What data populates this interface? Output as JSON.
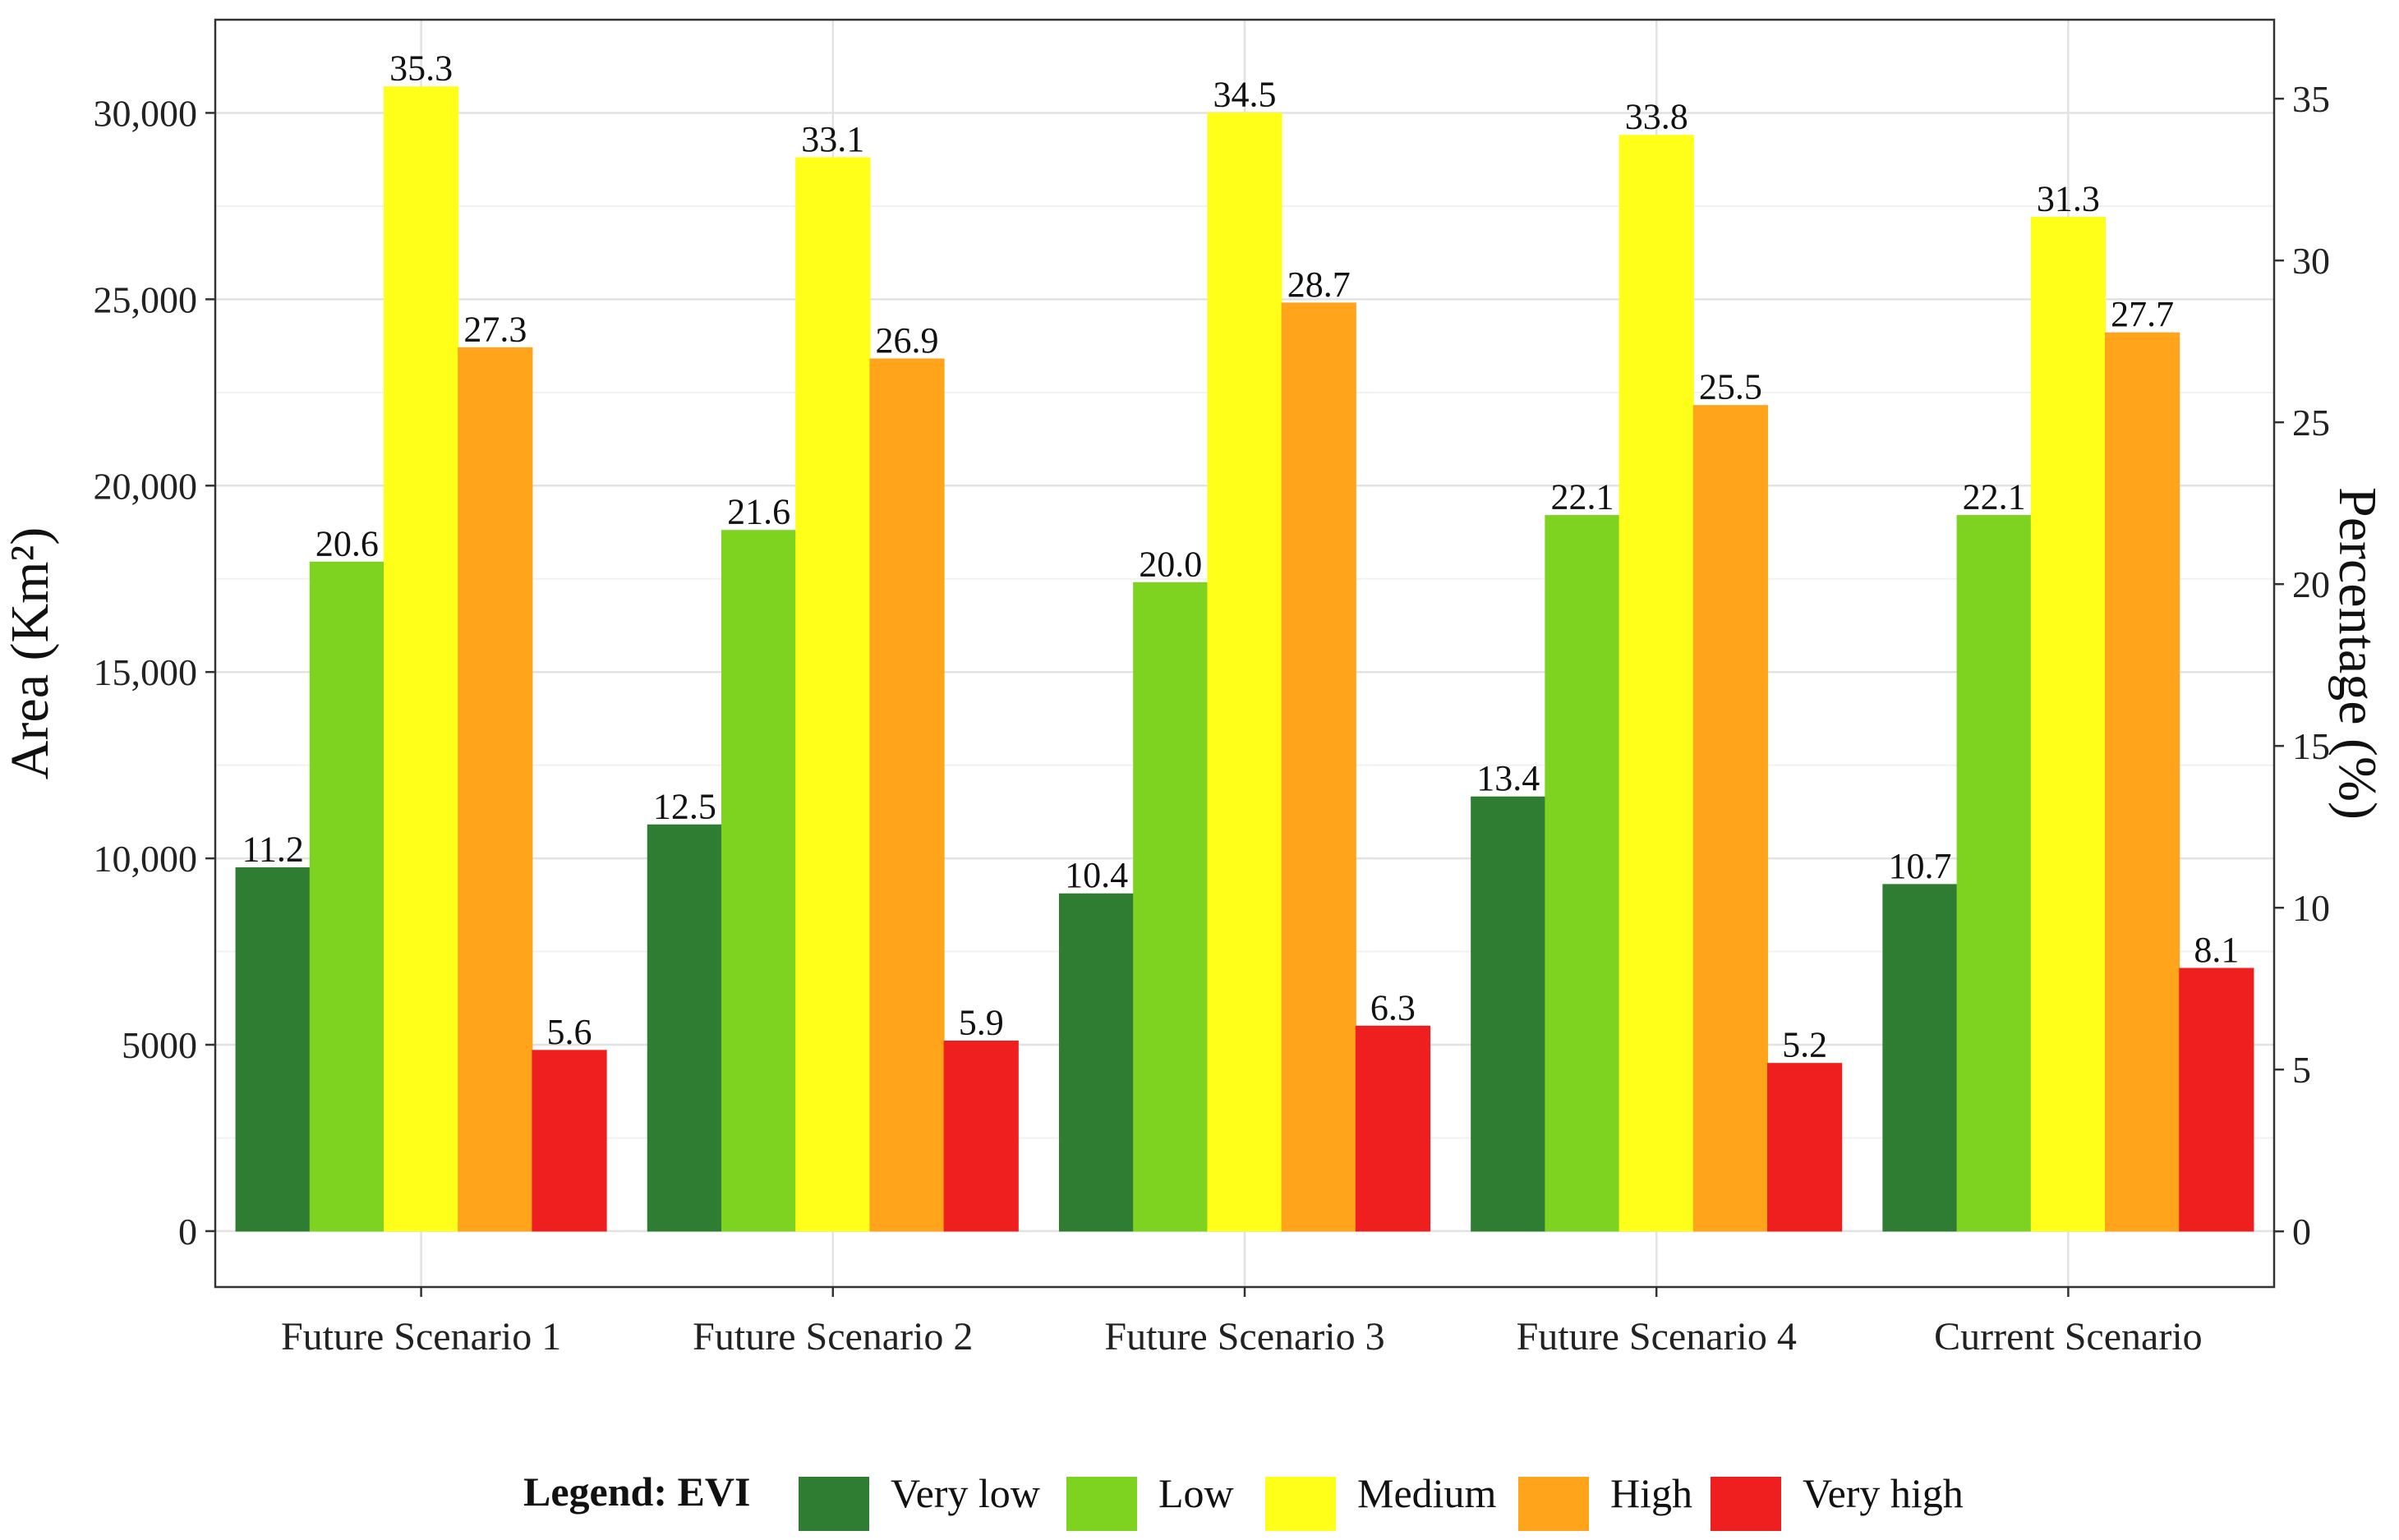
{
  "chart_data": {
    "type": "bar",
    "categories": [
      "Future Scenario 1",
      "Future Scenario 2",
      "Future Scenario 3",
      "Future Scenario 4",
      "Current Scenario"
    ],
    "series": [
      {
        "name": "Very low",
        "color": "#2e7d32",
        "area": [
          9750,
          10900,
          9050,
          11650,
          9300
        ],
        "percent_labels": [
          "11.2",
          "12.5",
          "10.4",
          "13.4",
          "10.7"
        ]
      },
      {
        "name": "Low",
        "color": "#7ed321",
        "area": [
          17950,
          18800,
          17400,
          19200,
          19200
        ],
        "percent_labels": [
          "20.6",
          "21.6",
          "20.0",
          "22.1",
          "22.1"
        ]
      },
      {
        "name": "Medium",
        "color": "#ffff1a",
        "area": [
          30700,
          28800,
          30000,
          29400,
          27200
        ],
        "percent_labels": [
          "35.3",
          "33.1",
          "34.5",
          "33.8",
          "31.3"
        ]
      },
      {
        "name": "High",
        "color": "#ffa41b",
        "area": [
          23700,
          23400,
          24900,
          22150,
          24100
        ],
        "percent_labels": [
          "27.3",
          "26.9",
          "28.7",
          "25.5",
          "27.7"
        ]
      },
      {
        "name": "Very high",
        "color": "#f01f1f",
        "area": [
          4850,
          5100,
          5500,
          4500,
          7050
        ],
        "percent_labels": [
          "5.6",
          "5.9",
          "6.3",
          "5.2",
          "8.1"
        ]
      }
    ],
    "ylabel": "Area (Km²)",
    "y2label": "Percentage (%)",
    "ylim": [
      -1500,
      32500
    ],
    "y2lim": [
      -1.72,
      37.44
    ],
    "yticks": [
      0,
      5000,
      10000,
      15000,
      20000,
      25000,
      30000
    ],
    "yticklabels": [
      "0",
      "5000",
      "10,000",
      "15,000",
      "20,000",
      "25,000",
      "30,000"
    ],
    "y2ticks": [
      0,
      5,
      10,
      15,
      20,
      25,
      30,
      35
    ],
    "y2ticklabels": [
      "0",
      "5",
      "10",
      "15",
      "20",
      "25",
      "30",
      "35"
    ],
    "legend_title": "Legend: EVI",
    "legend_position": "bottom",
    "grid": true
  }
}
